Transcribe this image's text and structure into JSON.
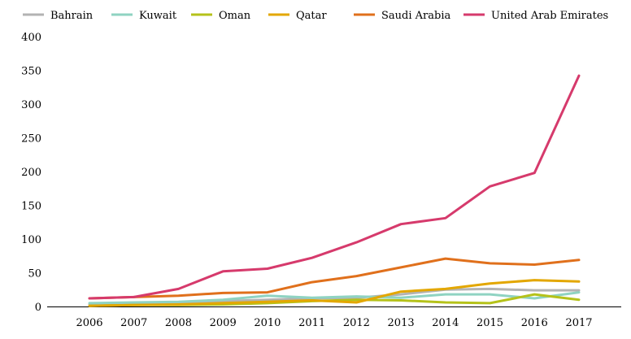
{
  "chart_data": {
    "type": "line",
    "title": "",
    "xlabel": "",
    "ylabel": "",
    "x": [
      2006,
      2007,
      2008,
      2009,
      2010,
      2011,
      2012,
      2013,
      2014,
      2015,
      2016,
      2017
    ],
    "ylim": [
      0,
      400
    ],
    "yticks": [
      0,
      50,
      100,
      150,
      200,
      250,
      300,
      350,
      400
    ],
    "grid": false,
    "legend_position": "top",
    "series": [
      {
        "name": "Bahrain",
        "color": "#b3b3b3",
        "values": [
          3,
          5,
          6,
          8,
          10,
          12,
          13,
          18,
          25,
          26,
          24,
          24
        ]
      },
      {
        "name": "Kuwait",
        "color": "#8fd3c2",
        "values": [
          5,
          6,
          7,
          10,
          16,
          13,
          15,
          13,
          18,
          18,
          12,
          21
        ]
      },
      {
        "name": "Oman",
        "color": "#b5c21a",
        "values": [
          1,
          2,
          2,
          3,
          5,
          8,
          10,
          9,
          6,
          5,
          18,
          10
        ]
      },
      {
        "name": "Qatar",
        "color": "#e3a700",
        "values": [
          1,
          2,
          3,
          5,
          7,
          9,
          6,
          22,
          26,
          34,
          39,
          37
        ]
      },
      {
        "name": "Saudi Arabia",
        "color": "#e0701c",
        "values": [
          12,
          14,
          16,
          20,
          21,
          36,
          45,
          58,
          71,
          64,
          62,
          69
        ]
      },
      {
        "name": "United Arab Emirates",
        "color": "#d63a6c",
        "values": [
          12,
          14,
          26,
          52,
          56,
          72,
          95,
          122,
          131,
          178,
          198,
          342
        ]
      }
    ]
  }
}
